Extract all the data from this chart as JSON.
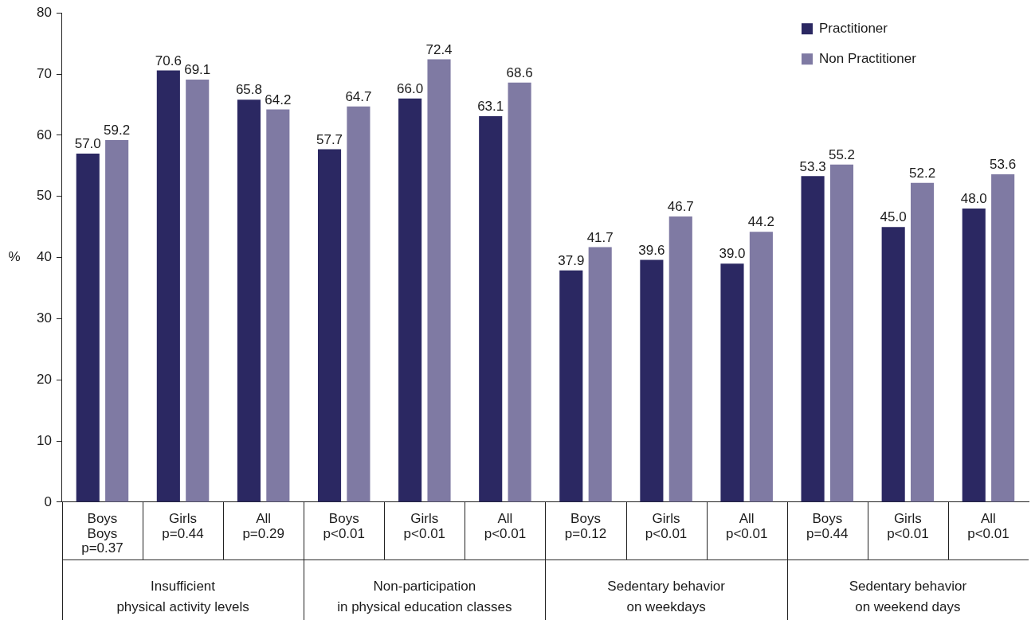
{
  "chart_data": {
    "type": "bar",
    "ylabel": "%",
    "categories": [
      "Boys\nBoys\np=0.37",
      "Girls\np=0.44",
      "All\np=0.29",
      "Boys\np<0.01",
      "Girls\np<0.01",
      "All\np<0.01",
      "Boys\np=0.12",
      "Girls\np<0.01",
      "All\np<0.01",
      "Boys\np=0.44",
      "Girls\np<0.01",
      "All\np<0.01"
    ],
    "series": [
      {
        "name": "Practitioner",
        "color": "#2b2862",
        "values": [
          57.0,
          70.6,
          65.8,
          57.7,
          66.0,
          63.1,
          37.9,
          39.6,
          39.0,
          53.3,
          45.0,
          48.0
        ],
        "value_labels": [
          "57.0",
          "70.6",
          "65.8",
          "57.7",
          "66.0",
          "63.1",
          "37.9",
          "39.6",
          "39.0",
          "53.3",
          "45.0",
          "48.0"
        ]
      },
      {
        "name": "Non Practitioner",
        "color": "#7f7aa3",
        "values": [
          59.2,
          69.1,
          64.2,
          64.7,
          72.4,
          68.6,
          41.7,
          46.7,
          44.2,
          55.2,
          52.2,
          53.6
        ],
        "value_labels": [
          "59.2",
          "69.1",
          "64.2",
          "64.7",
          "72.4",
          "68.6",
          "41.7",
          "46.7",
          "44.2",
          "55.2",
          "52.2",
          "53.6"
        ]
      }
    ],
    "annotations": [
      "Insufficient\nphysical activity levels",
      "Non-participation\nin physical education classes",
      "Sedentary behavior\non weekdays",
      "Sedentary behavior\non weekend days"
    ],
    "ylim": [
      0,
      80
    ],
    "yticks": [
      0,
      10,
      20,
      30,
      40,
      50,
      60,
      70,
      80
    ],
    "grid": false,
    "legend": "top right"
  }
}
